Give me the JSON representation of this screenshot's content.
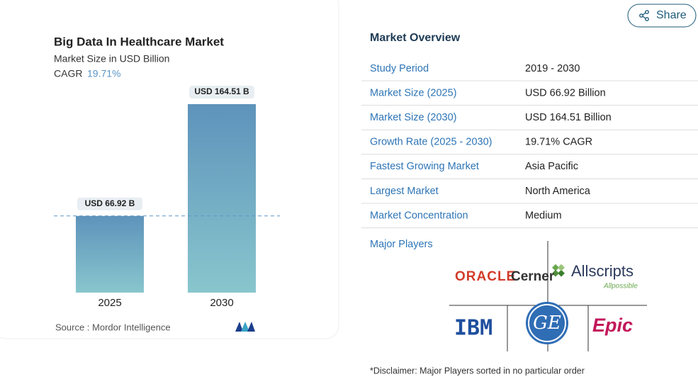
{
  "share": "Share",
  "chart_data": {
    "type": "bar",
    "title": "Big Data In Healthcare Market",
    "subtitle": "Market Size in USD Billion",
    "cagr_label": "CAGR",
    "cagr": "19.71%",
    "categories": [
      "2025",
      "2030"
    ],
    "values": [
      66.92,
      164.51
    ],
    "value_labels": [
      "USD 66.92 B",
      "USD 164.51 B"
    ],
    "color": "#6a9fc2",
    "source": "Source : Mordor Intelligence"
  },
  "overview": {
    "title": "Market Overview",
    "rows": [
      [
        "Study Period",
        "2019 - 2030"
      ],
      [
        "Market Size (2025)",
        "USD 66.92 Billion"
      ],
      [
        "Market Size (2030)",
        "USD 164.51 Billion"
      ],
      [
        "Growth Rate (2025 - 2030)",
        "19.71% CAGR"
      ],
      [
        "Fastest Growing Market",
        "Asia Pacific"
      ],
      [
        "Largest Market",
        "North America"
      ],
      [
        "Market Concentration",
        "Medium"
      ]
    ],
    "players_title": "Major Players",
    "players": [
      "ORACLE",
      "Cerner",
      "Allscripts",
      "Allpossible",
      "IBM",
      "GE",
      "Epic"
    ],
    "disclaimer": "*Disclaimer: Major Players sorted in no particular order"
  }
}
